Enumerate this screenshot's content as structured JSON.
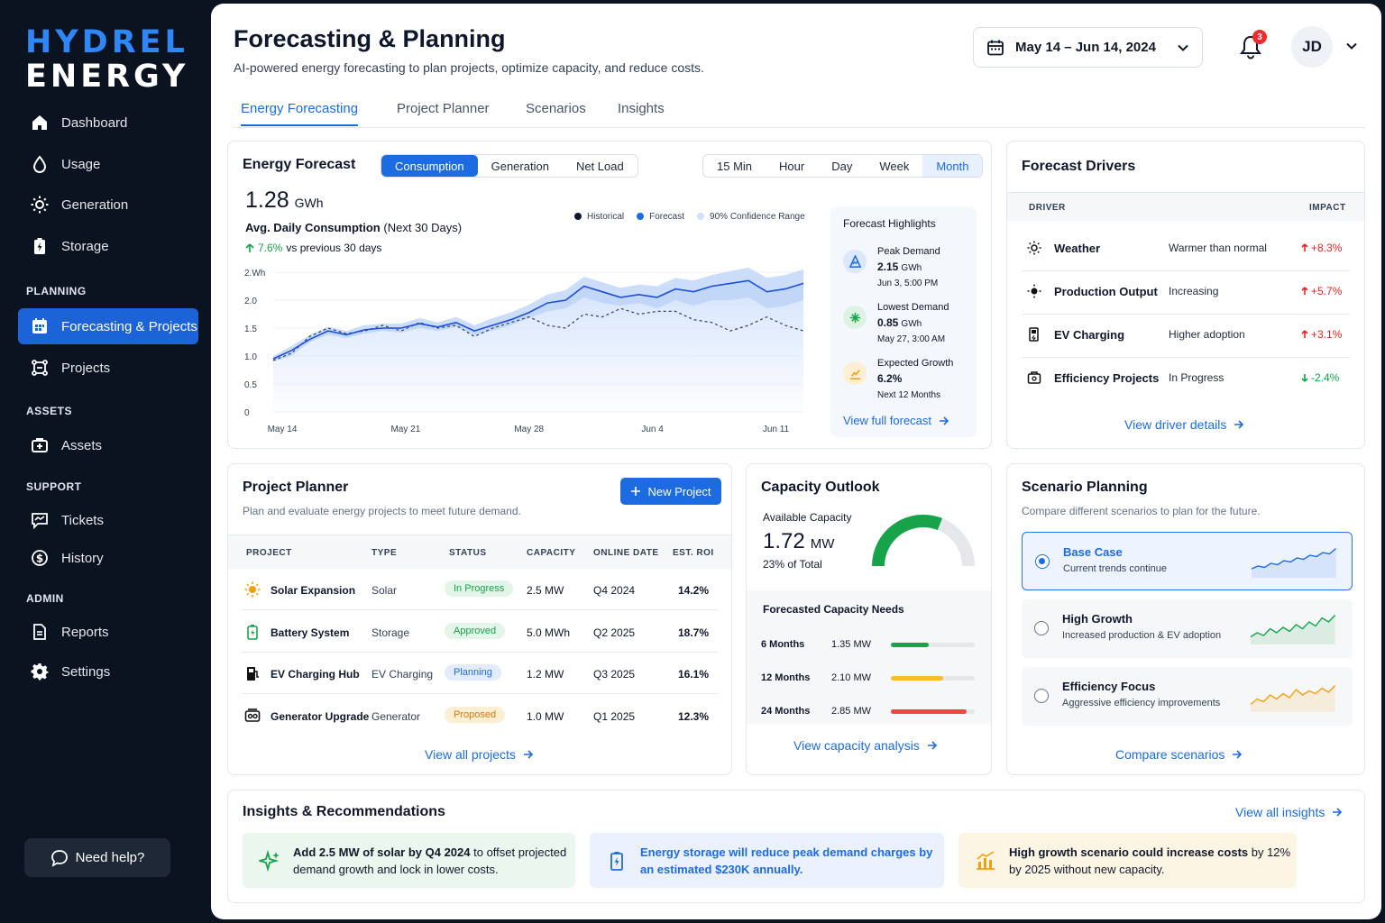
{
  "brand": {
    "line1": "HYDREL",
    "line2": "ENERGY"
  },
  "sidebar": {
    "items": [
      {
        "label": "Dashboard",
        "icon": "home-icon"
      },
      {
        "label": "Usage",
        "icon": "drop-icon"
      },
      {
        "label": "Generation",
        "icon": "sun-icon"
      },
      {
        "label": "Storage",
        "icon": "battery-icon"
      }
    ],
    "sections": {
      "planning": "PLANNING",
      "assets": "ASSETS",
      "support": "SUPPORT",
      "admin": "ADMIN"
    },
    "planning_items": [
      {
        "label": "Forecasting & Projects",
        "icon": "calendar-grid-icon",
        "active": true
      },
      {
        "label": "Projects",
        "icon": "network-icon"
      }
    ],
    "assets_items": [
      {
        "label": "Assets",
        "icon": "briefcase-icon"
      }
    ],
    "support_items": [
      {
        "label": "Tickets",
        "icon": "ticket-icon"
      },
      {
        "label": "History",
        "icon": "dollar-circle-icon"
      }
    ],
    "admin_items": [
      {
        "label": "Reports",
        "icon": "document-icon"
      },
      {
        "label": "Settings",
        "icon": "gear-icon"
      }
    ],
    "help": "Need help?"
  },
  "header": {
    "title": "Forecasting & Planning",
    "subtitle": "AI-powered energy forecasting to plan projects, optimize capacity, and reduce costs.",
    "date_range": "May 14 – Jun 14, 2024",
    "notifications": "3",
    "user_initials": "JD"
  },
  "tabs": [
    "Energy Forecasting",
    "Project Planner",
    "Scenarios",
    "Insights"
  ],
  "forecast": {
    "title": "Energy Forecast",
    "modes": [
      "Consumption",
      "Generation",
      "Net Load"
    ],
    "intervals": [
      "15 Min",
      "Hour",
      "Day",
      "Week",
      "Month"
    ],
    "value": "1.28",
    "unit": "GWh",
    "metric_label": "Avg. Daily Consumption",
    "metric_period": "(Next 30 Days)",
    "change": "7.6%",
    "change_text": "vs previous 30 days",
    "legend": [
      "Historical",
      "Forecast",
      "90% Confidence Range"
    ],
    "colors": {
      "historical": "#0f172a",
      "forecast": "#1d6be0",
      "band": "#cfe0fb"
    }
  },
  "chart_data": {
    "type": "area",
    "ylabel": "",
    "y_ticks": [
      "2.Wh",
      "2.0",
      "1.5",
      "1.0",
      "0.5",
      "0"
    ],
    "ylim": [
      0,
      2.5
    ],
    "x_ticks": [
      "May 14",
      "May 21",
      "May 28",
      "Jun 4",
      "Jun 11"
    ],
    "series": [
      {
        "name": "Historical",
        "values": [
          0.92,
          1.05,
          1.35,
          1.5,
          1.4,
          1.45,
          1.55,
          1.45,
          1.6,
          1.5,
          1.55,
          1.35,
          1.5,
          1.6,
          1.7,
          1.55,
          1.5,
          1.75,
          1.7,
          1.85,
          1.75,
          1.8,
          1.8,
          1.65,
          1.6,
          1.45,
          1.55,
          1.7,
          1.55,
          1.45
        ]
      },
      {
        "name": "Forecast",
        "values": [
          0.95,
          1.1,
          1.3,
          1.45,
          1.38,
          1.47,
          1.5,
          1.5,
          1.58,
          1.52,
          1.6,
          1.45,
          1.55,
          1.65,
          1.78,
          1.95,
          2.0,
          2.25,
          2.15,
          2.05,
          2.1,
          2.05,
          2.2,
          2.15,
          2.25,
          2.3,
          2.35,
          2.15,
          2.2,
          2.3
        ]
      },
      {
        "name": "90% Confidence Range",
        "lower": [
          0.9,
          1.0,
          1.25,
          1.38,
          1.32,
          1.4,
          1.45,
          1.42,
          1.5,
          1.45,
          1.52,
          1.38,
          1.45,
          1.55,
          1.68,
          1.8,
          1.85,
          2.05,
          1.95,
          1.9,
          1.95,
          1.85,
          2.0,
          1.9,
          2.0,
          2.0,
          2.05,
          1.85,
          1.9,
          2.0
        ],
        "upper": [
          1.0,
          1.18,
          1.38,
          1.52,
          1.45,
          1.55,
          1.58,
          1.58,
          1.68,
          1.6,
          1.7,
          1.55,
          1.68,
          1.78,
          1.92,
          2.1,
          2.18,
          2.42,
          2.32,
          2.22,
          2.28,
          2.25,
          2.4,
          2.35,
          2.45,
          2.52,
          2.58,
          2.4,
          2.45,
          2.55
        ]
      }
    ]
  },
  "highlights": {
    "title": "Forecast Highlights",
    "items": [
      {
        "label": "Peak Demand",
        "value": "2.15",
        "unit": "GWh",
        "detail": "Jun 3, 5:00 PM"
      },
      {
        "label": "Lowest Demand",
        "value": "0.85",
        "unit": "GWh",
        "detail": "May 27, 3:00 AM"
      },
      {
        "label": "Expected Growth",
        "value": "6.2%",
        "unit": "",
        "detail": "Next 12 Months"
      }
    ],
    "link": "View full forecast"
  },
  "drivers": {
    "title": "Forecast Drivers",
    "col_driver": "DRIVER",
    "col_impact": "IMPACT",
    "rows": [
      {
        "name": "Weather",
        "desc": "Warmer than normal",
        "impact": "+8.3%",
        "dir": "up"
      },
      {
        "name": "Production Output",
        "desc": "Increasing",
        "impact": "+5.7%",
        "dir": "up"
      },
      {
        "name": "EV Charging",
        "desc": "Higher adoption",
        "impact": "+3.1%",
        "dir": "up"
      },
      {
        "name": "Efficiency Projects",
        "desc": "In Progress",
        "impact": "-2.4%",
        "dir": "down"
      }
    ],
    "link": "View driver details"
  },
  "planner": {
    "title": "Project Planner",
    "subtitle": "Plan and evaluate energy projects to meet future demand.",
    "new_button": "New Project",
    "columns": [
      "PROJECT",
      "TYPE",
      "STATUS",
      "CAPACITY",
      "ONLINE DATE",
      "EST. ROI"
    ],
    "rows": [
      {
        "project": "Solar Expansion",
        "type": "Solar",
        "status": "In Progress",
        "capacity": "2.5 MW",
        "online": "Q4 2024",
        "roi": "14.2%",
        "icon": "sun-icon"
      },
      {
        "project": "Battery System",
        "type": "Storage",
        "status": "Approved",
        "capacity": "5.0 MWh",
        "online": "Q2 2025",
        "roi": "18.7%",
        "icon": "battery-icon"
      },
      {
        "project": "EV Charging Hub",
        "type": "EV Charging",
        "status": "Planning",
        "capacity": "1.2 MW",
        "online": "Q3 2025",
        "roi": "16.1%",
        "icon": "ev-charger-icon"
      },
      {
        "project": "Generator Upgrade",
        "type": "Generator",
        "status": "Proposed",
        "capacity": "1.0 MW",
        "online": "Q1 2025",
        "roi": "12.3%",
        "icon": "generator-icon"
      }
    ],
    "link": "View all projects"
  },
  "capacity": {
    "title": "Capacity Outlook",
    "available_label": "Available Capacity",
    "value": "1.72",
    "unit": "MW",
    "pct_text": "23% of Total",
    "gauge_fraction": 0.23,
    "needs_title": "Forecasted Capacity Needs",
    "needs": [
      {
        "period": "6 Months",
        "value": "1.35 MW",
        "fraction": 0.45,
        "color": "#16a34a"
      },
      {
        "period": "12 Months",
        "value": "2.10 MW",
        "fraction": 0.62,
        "color": "#fbbf24"
      },
      {
        "period": "24 Months",
        "value": "2.85 MW",
        "fraction": 0.9,
        "color": "#ef4444"
      }
    ],
    "link": "View capacity analysis"
  },
  "scenarios": {
    "title": "Scenario Planning",
    "subtitle": "Compare different scenarios to plan for the future.",
    "items": [
      {
        "title": "Base Case",
        "desc": "Current trends continue",
        "color": "#1d6be0",
        "selected": true
      },
      {
        "title": "High Growth",
        "desc": "Increased production & EV adoption",
        "color": "#16a34a",
        "selected": false
      },
      {
        "title": "Efficiency Focus",
        "desc": "Aggressive efficiency improvements",
        "color": "#f59e0b",
        "selected": false
      }
    ],
    "link": "Compare scenarios"
  },
  "insights": {
    "title": "Insights & Recommendations",
    "link": "View all insights",
    "items": [
      {
        "bold": "Add 2.5 MW of solar by Q4 2024",
        "rest": " to offset projected demand growth and lock in lower costs."
      },
      {
        "bold": "Energy storage will reduce peak demand charges by an estimated $230K annually.",
        "rest": ""
      },
      {
        "bold": "High growth scenario could increase costs",
        "rest": " by 12% by 2025 without new capacity."
      }
    ]
  }
}
